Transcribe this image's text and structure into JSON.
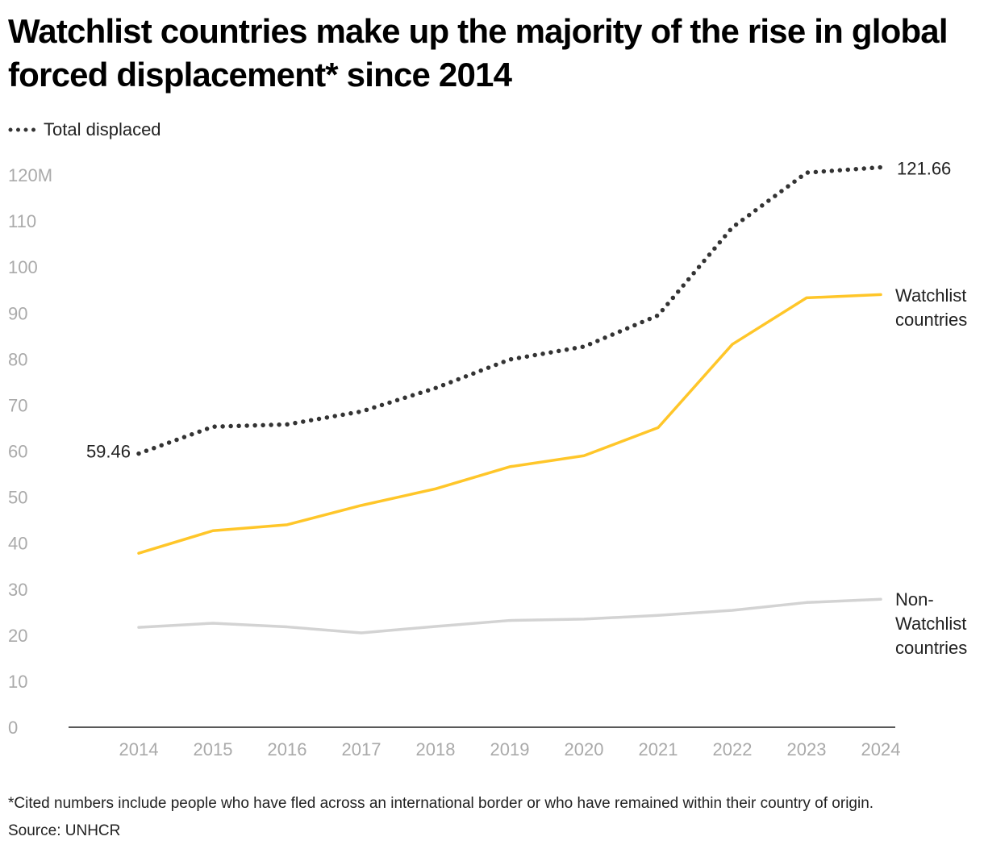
{
  "title": "Watchlist countries make up the majority of the rise in global forced displacement* since 2014",
  "legend": {
    "label": "Total displaced"
  },
  "footnote": "*Cited numbers include people who have fled across an international border or who have remained within their country of origin.",
  "source": "Source: UNHCR",
  "chart_data": {
    "type": "line",
    "x": [
      "2014",
      "2015",
      "2016",
      "2017",
      "2018",
      "2019",
      "2020",
      "2021",
      "2022",
      "2023",
      "2024"
    ],
    "ylim": [
      0,
      120
    ],
    "yticks": [
      "0",
      "10",
      "20",
      "30",
      "40",
      "50",
      "60",
      "70",
      "80",
      "90",
      "100",
      "110",
      "120M"
    ],
    "grid": false,
    "legend_position": "top-left",
    "series": [
      {
        "name": "Total displaced",
        "color": "#333333",
        "style": "dotted",
        "values": [
          59.46,
          65.3,
          65.8,
          68.6,
          73.7,
          79.9,
          82.7,
          89.5,
          108.6,
          120.5,
          121.66
        ],
        "start_label": "59.46",
        "end_label": "121.66"
      },
      {
        "name": "Watchlist countries",
        "color": "#FFC629",
        "style": "solid",
        "values": [
          37.8,
          42.7,
          44.0,
          48.2,
          51.8,
          56.6,
          59.0,
          65.1,
          83.2,
          93.3,
          94.0
        ],
        "label_lines": [
          "Watchlist",
          "countries"
        ]
      },
      {
        "name": "Non-Watchlist countries",
        "color": "#D3D3D3",
        "style": "solid",
        "values": [
          21.7,
          22.6,
          21.8,
          20.5,
          21.9,
          23.2,
          23.5,
          24.3,
          25.4,
          27.1,
          27.8
        ],
        "label_lines": [
          "Non-",
          "Watchlist",
          "countries"
        ]
      }
    ]
  }
}
